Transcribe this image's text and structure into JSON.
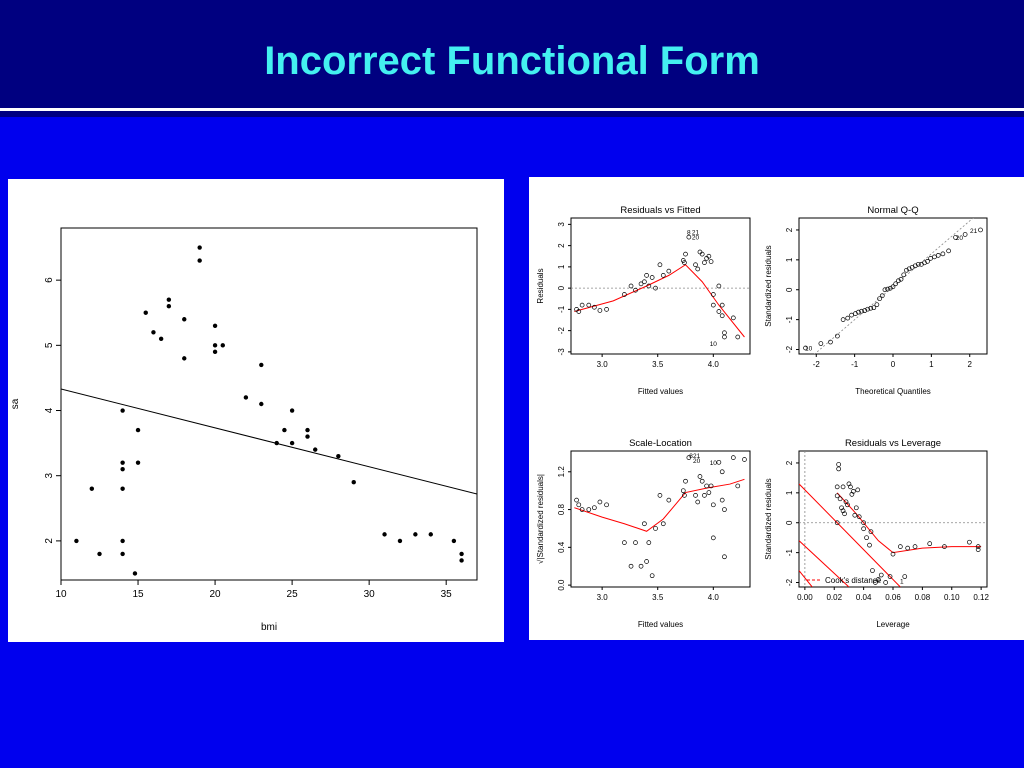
{
  "title": "Incorrect Functional Form",
  "colors": {
    "header_bg": "#000080",
    "body_bg": "#0000ee",
    "title_text": "#44f0f0",
    "divider": "#ffffff",
    "fit_line": "#ff0000"
  },
  "chart_data": [
    {
      "type": "scatter",
      "title": "",
      "xlabel": "bmi",
      "ylabel": "sa",
      "xlim": [
        10,
        37
      ],
      "ylim": [
        1.4,
        6.8
      ],
      "xticks": [
        "10",
        "15",
        "20",
        "25",
        "30",
        "35"
      ],
      "yticks": [
        "2",
        "3",
        "4",
        "5",
        "6"
      ],
      "fit_line": {
        "x": [
          10,
          37
        ],
        "y": [
          4.33,
          2.72
        ]
      },
      "points": [
        [
          11,
          2.0
        ],
        [
          12,
          2.8
        ],
        [
          12.5,
          1.8
        ],
        [
          14,
          4.0
        ],
        [
          14,
          3.2
        ],
        [
          14,
          3.1
        ],
        [
          14,
          2.8
        ],
        [
          14,
          2.0
        ],
        [
          14,
          1.8
        ],
        [
          14.8,
          1.5
        ],
        [
          15,
          3.7
        ],
        [
          15,
          3.2
        ],
        [
          15.5,
          5.5
        ],
        [
          16,
          5.2
        ],
        [
          16.5,
          5.1
        ],
        [
          17,
          5.7
        ],
        [
          17,
          5.6
        ],
        [
          18,
          5.4
        ],
        [
          18,
          4.8
        ],
        [
          19,
          6.5
        ],
        [
          19,
          6.3
        ],
        [
          20,
          5.3
        ],
        [
          20,
          5.0
        ],
        [
          20,
          4.9
        ],
        [
          20.5,
          5.0
        ],
        [
          22,
          4.2
        ],
        [
          23,
          4.7
        ],
        [
          23,
          4.1
        ],
        [
          24,
          3.5
        ],
        [
          24.5,
          3.7
        ],
        [
          25,
          4.0
        ],
        [
          25,
          3.5
        ],
        [
          26,
          3.7
        ],
        [
          26,
          3.6
        ],
        [
          26.5,
          3.4
        ],
        [
          28,
          3.3
        ],
        [
          29,
          2.9
        ],
        [
          31,
          2.1
        ],
        [
          32,
          2.0
        ],
        [
          33,
          2.1
        ],
        [
          34,
          2.1
        ],
        [
          35.5,
          2.0
        ],
        [
          36,
          1.8
        ],
        [
          36,
          1.7
        ]
      ]
    },
    {
      "type": "scatter",
      "title": "Residuals vs Fitted",
      "xlabel": "Fitted values",
      "ylabel": "Residuals",
      "xlim": [
        2.72,
        4.33
      ],
      "ylim": [
        -3.1,
        3.3
      ],
      "xticks": [
        "3.0",
        "3.5",
        "4.0"
      ],
      "yticks": [
        "-3",
        "-2",
        "-1",
        "0",
        "1",
        "2",
        "3"
      ],
      "hline": 0,
      "smooth": {
        "x": [
          2.75,
          3.1,
          3.4,
          3.6,
          3.75,
          3.9,
          4.05,
          4.28
        ],
        "y": [
          -1.1,
          -0.6,
          0.1,
          0.6,
          1.1,
          0.3,
          -0.8,
          -2.3
        ]
      },
      "labels": [
        {
          "text": "8",
          "x": 3.78,
          "y": 2.65
        },
        {
          "text": "21",
          "x": 3.84,
          "y": 2.65
        },
        {
          "text": "20",
          "x": 3.84,
          "y": 2.4
        },
        {
          "text": "10",
          "x": 4.0,
          "y": -2.6
        }
      ],
      "points": [
        [
          2.77,
          -1.0
        ],
        [
          2.79,
          -1.1
        ],
        [
          2.82,
          -0.8
        ],
        [
          2.88,
          -0.8
        ],
        [
          2.93,
          -0.9
        ],
        [
          2.98,
          -1.05
        ],
        [
          3.04,
          -1.0
        ],
        [
          3.2,
          -0.3
        ],
        [
          3.26,
          0.1
        ],
        [
          3.3,
          -0.1
        ],
        [
          3.35,
          0.2
        ],
        [
          3.38,
          0.3
        ],
        [
          3.4,
          0.6
        ],
        [
          3.42,
          0.1
        ],
        [
          3.45,
          0.5
        ],
        [
          3.48,
          0.0
        ],
        [
          3.52,
          1.1
        ],
        [
          3.55,
          0.6
        ],
        [
          3.6,
          0.8
        ],
        [
          3.73,
          1.3
        ],
        [
          3.74,
          1.2
        ],
        [
          3.75,
          1.6
        ],
        [
          3.78,
          2.4
        ],
        [
          3.84,
          1.1
        ],
        [
          3.86,
          0.9
        ],
        [
          3.88,
          1.7
        ],
        [
          3.9,
          1.6
        ],
        [
          3.92,
          1.2
        ],
        [
          3.94,
          1.4
        ],
        [
          3.96,
          1.5
        ],
        [
          3.98,
          1.25
        ],
        [
          4.0,
          -0.3
        ],
        [
          4.0,
          -0.8
        ],
        [
          4.05,
          -1.1
        ],
        [
          4.08,
          -1.3
        ],
        [
          4.08,
          -0.8
        ],
        [
          4.1,
          -2.1
        ],
        [
          4.1,
          -2.3
        ],
        [
          4.18,
          -1.4
        ],
        [
          4.22,
          -2.3
        ],
        [
          4.05,
          0.1
        ]
      ]
    },
    {
      "type": "scatter",
      "title": "Normal Q-Q",
      "xlabel": "Theoretical Quantiles",
      "ylabel": "Standardized residuals",
      "xlim": [
        -2.45,
        2.45
      ],
      "ylim": [
        -2.15,
        2.4
      ],
      "xticks": [
        "-2",
        "-1",
        "0",
        "1",
        "2"
      ],
      "yticks": [
        "-2",
        "-1",
        "0",
        "1",
        "2"
      ],
      "reference_line": {
        "x": [
          -2.45,
          2.45
        ],
        "y": [
          -2.6,
          2.8
        ]
      },
      "labels": [
        {
          "text": "10",
          "x": -2.2,
          "y": -1.95
        },
        {
          "text": "20",
          "x": 1.73,
          "y": 1.75
        },
        {
          "text": "21",
          "x": 2.1,
          "y": 1.98
        }
      ],
      "points": [
        [
          -2.28,
          -1.95
        ],
        [
          -1.88,
          -1.8
        ],
        [
          -1.63,
          -1.75
        ],
        [
          -1.45,
          -1.55
        ],
        [
          -1.3,
          -1.0
        ],
        [
          -1.18,
          -0.95
        ],
        [
          -1.08,
          -0.85
        ],
        [
          -0.98,
          -0.8
        ],
        [
          -0.9,
          -0.75
        ],
        [
          -0.82,
          -0.72
        ],
        [
          -0.74,
          -0.7
        ],
        [
          -0.66,
          -0.65
        ],
        [
          -0.58,
          -0.62
        ],
        [
          -0.5,
          -0.6
        ],
        [
          -0.42,
          -0.5
        ],
        [
          -0.35,
          -0.3
        ],
        [
          -0.28,
          -0.2
        ],
        [
          -0.21,
          0.0
        ],
        [
          -0.14,
          0.02
        ],
        [
          -0.07,
          0.05
        ],
        [
          0.0,
          0.1
        ],
        [
          0.07,
          0.2
        ],
        [
          0.14,
          0.3
        ],
        [
          0.21,
          0.35
        ],
        [
          0.28,
          0.5
        ],
        [
          0.35,
          0.65
        ],
        [
          0.42,
          0.7
        ],
        [
          0.5,
          0.75
        ],
        [
          0.58,
          0.8
        ],
        [
          0.66,
          0.85
        ],
        [
          0.74,
          0.85
        ],
        [
          0.82,
          0.9
        ],
        [
          0.9,
          0.95
        ],
        [
          0.98,
          1.05
        ],
        [
          1.08,
          1.1
        ],
        [
          1.18,
          1.15
        ],
        [
          1.3,
          1.2
        ],
        [
          1.45,
          1.3
        ],
        [
          1.63,
          1.75
        ],
        [
          1.88,
          1.85
        ],
        [
          2.28,
          2.0
        ]
      ]
    },
    {
      "type": "scatter",
      "title": "Scale-Location",
      "xlabel": "Fitted values",
      "ylabel": "√|Standardized residuals|",
      "xlim": [
        2.72,
        4.33
      ],
      "ylim": [
        -0.02,
        1.42
      ],
      "xticks": [
        "3.0",
        "3.5",
        "4.0"
      ],
      "yticks": [
        "0.0",
        "0.4",
        "0.8",
        "1.2"
      ],
      "smooth": {
        "x": [
          2.75,
          3.0,
          3.2,
          3.4,
          3.55,
          3.75,
          3.95,
          4.15,
          4.28
        ],
        "y": [
          0.82,
          0.72,
          0.65,
          0.57,
          0.7,
          0.98,
          1.03,
          1.07,
          1.12
        ]
      },
      "labels": [
        {
          "text": "8",
          "x": 3.8,
          "y": 1.37
        },
        {
          "text": "21",
          "x": 3.85,
          "y": 1.37
        },
        {
          "text": "20",
          "x": 3.85,
          "y": 1.32
        },
        {
          "text": "10",
          "x": 4.0,
          "y": 1.3
        }
      ],
      "points": [
        [
          2.77,
          0.9
        ],
        [
          2.79,
          0.85
        ],
        [
          2.82,
          0.8
        ],
        [
          2.88,
          0.8
        ],
        [
          2.93,
          0.82
        ],
        [
          2.98,
          0.88
        ],
        [
          3.04,
          0.85
        ],
        [
          3.2,
          0.45
        ],
        [
          3.26,
          0.2
        ],
        [
          3.3,
          0.45
        ],
        [
          3.35,
          0.2
        ],
        [
          3.38,
          0.65
        ],
        [
          3.4,
          0.25
        ],
        [
          3.42,
          0.45
        ],
        [
          3.45,
          0.1
        ],
        [
          3.48,
          0.6
        ],
        [
          3.52,
          0.95
        ],
        [
          3.55,
          0.65
        ],
        [
          3.6,
          0.9
        ],
        [
          3.73,
          1.0
        ],
        [
          3.74,
          0.95
        ],
        [
          3.75,
          1.1
        ],
        [
          3.78,
          1.35
        ],
        [
          3.84,
          0.95
        ],
        [
          3.86,
          0.88
        ],
        [
          3.88,
          1.15
        ],
        [
          3.9,
          1.1
        ],
        [
          3.92,
          0.95
        ],
        [
          3.94,
          1.05
        ],
        [
          3.96,
          0.98
        ],
        [
          3.98,
          1.05
        ],
        [
          4.0,
          0.5
        ],
        [
          4.0,
          0.85
        ],
        [
          4.05,
          1.3
        ],
        [
          4.08,
          1.2
        ],
        [
          4.08,
          0.9
        ],
        [
          4.1,
          0.3
        ],
        [
          4.1,
          0.8
        ],
        [
          4.18,
          1.35
        ],
        [
          4.22,
          1.05
        ],
        [
          4.28,
          1.33
        ]
      ]
    },
    {
      "type": "scatter",
      "title": "Residuals vs Leverage",
      "xlabel": "Leverage",
      "ylabel": "Standardized residuals",
      "xlim": [
        -0.004,
        0.124
      ],
      "ylim": [
        -2.15,
        2.4
      ],
      "xticks": [
        "0.00",
        "0.02",
        "0.04",
        "0.06",
        "0.08",
        "0.10",
        "0.12"
      ],
      "yticks": [
        "-2",
        "-1",
        "0",
        "1",
        "2"
      ],
      "hline": 0,
      "vline": 0,
      "legend": "Cook's distance",
      "smooth": {
        "x": [
          0.022,
          0.035,
          0.05,
          0.06,
          0.08,
          0.1,
          0.12
        ],
        "y": [
          1.0,
          0.3,
          -0.6,
          -1.0,
          -0.85,
          -0.8,
          -0.8
        ]
      },
      "cook_lines": [
        {
          "x": [
            -0.004,
            0.065
          ],
          "y": [
            1.3,
            -2.15
          ]
        },
        {
          "x": [
            -0.004,
            0.03
          ],
          "y": [
            -0.6,
            -2.15
          ]
        },
        {
          "x": [
            -0.004,
            0.005
          ],
          "y": [
            -1.6,
            -2.15
          ]
        }
      ],
      "labels": [
        {
          "text": "1",
          "x": 0.066,
          "y": -1.95
        }
      ],
      "points": [
        [
          0.022,
          0.9
        ],
        [
          0.022,
          1.2
        ],
        [
          0.023,
          1.95
        ],
        [
          0.023,
          1.8
        ],
        [
          0.024,
          0.8
        ],
        [
          0.025,
          0.5
        ],
        [
          0.026,
          1.2
        ],
        [
          0.027,
          0.3
        ],
        [
          0.028,
          0.7
        ],
        [
          0.029,
          0.6
        ],
        [
          0.03,
          1.3
        ],
        [
          0.031,
          1.2
        ],
        [
          0.032,
          0.95
        ],
        [
          0.033,
          1.05
        ],
        [
          0.034,
          0.25
        ],
        [
          0.035,
          0.5
        ],
        [
          0.036,
          1.1
        ],
        [
          0.037,
          0.2
        ],
        [
          0.04,
          0.0
        ],
        [
          0.042,
          -0.5
        ],
        [
          0.044,
          -0.75
        ],
        [
          0.045,
          -0.3
        ],
        [
          0.046,
          -1.6
        ],
        [
          0.048,
          -2.0
        ],
        [
          0.05,
          -1.9
        ],
        [
          0.052,
          -1.75
        ],
        [
          0.055,
          -2.0
        ],
        [
          0.058,
          -1.8
        ],
        [
          0.06,
          -1.05
        ],
        [
          0.065,
          -0.8
        ],
        [
          0.068,
          -1.8
        ],
        [
          0.07,
          -0.85
        ],
        [
          0.075,
          -0.8
        ],
        [
          0.085,
          -0.7
        ],
        [
          0.095,
          -0.8
        ],
        [
          0.112,
          -0.65
        ],
        [
          0.118,
          -0.8
        ],
        [
          0.118,
          -0.9
        ],
        [
          0.022,
          0.0
        ],
        [
          0.026,
          0.4
        ],
        [
          0.04,
          -0.2
        ]
      ]
    }
  ]
}
